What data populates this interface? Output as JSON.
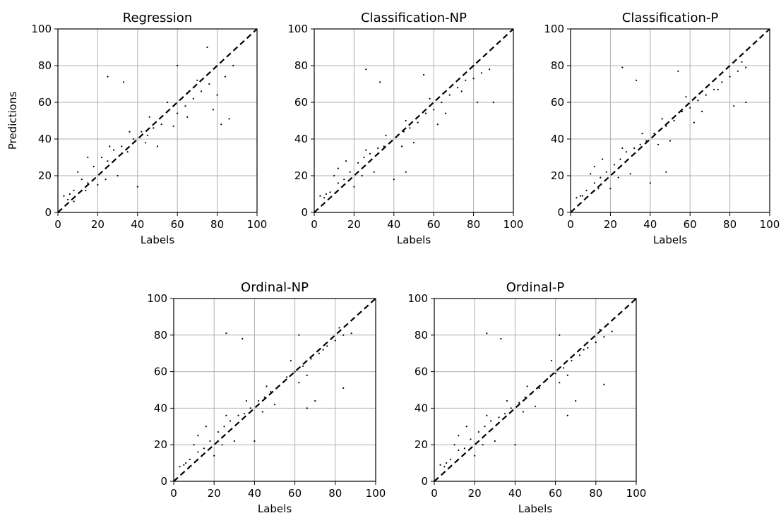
{
  "figure": {
    "ylabel": "Predictions"
  },
  "style": {
    "point_color": "#000000",
    "grid_color": "#b0b0b0",
    "reference_line_color": "#000000"
  },
  "chart_data": [
    {
      "type": "scatter",
      "title": "Regression",
      "xlabel": "Labels",
      "ylabel": "Predictions",
      "xlim": [
        0,
        100
      ],
      "ylim": [
        0,
        100
      ],
      "xticks": [
        "0",
        "20",
        "40",
        "60",
        "80",
        "100"
      ],
      "yticks": [
        "0",
        "20",
        "40",
        "60",
        "80",
        "100"
      ],
      "grid": true,
      "reference_line": {
        "type": "dashed",
        "points": [
          [
            0,
            0
          ],
          [
            100,
            100
          ]
        ]
      },
      "series": [
        {
          "points": [
            [
              3,
              9
            ],
            [
              5,
              7
            ],
            [
              8,
              12
            ],
            [
              12,
              18
            ],
            [
              15,
              16
            ],
            [
              18,
              25
            ],
            [
              22,
              30
            ],
            [
              25,
              28
            ],
            [
              28,
              34
            ],
            [
              32,
              36
            ],
            [
              35,
              33
            ],
            [
              38,
              40
            ],
            [
              42,
              44
            ],
            [
              45,
              42
            ],
            [
              48,
              46
            ],
            [
              52,
              48
            ],
            [
              56,
              56
            ],
            [
              60,
              54
            ],
            [
              64,
              58
            ],
            [
              68,
              62
            ],
            [
              72,
              66
            ],
            [
              76,
              70
            ],
            [
              80,
              64
            ],
            [
              84,
              74
            ],
            [
              88,
              80
            ],
            [
              75,
              90
            ],
            [
              25,
              74
            ],
            [
              33,
              71
            ],
            [
              60,
              80
            ],
            [
              86,
              51
            ],
            [
              82,
              48
            ],
            [
              40,
              14
            ],
            [
              8,
              6
            ],
            [
              10,
              22
            ],
            [
              20,
              15
            ],
            [
              30,
              20
            ],
            [
              15,
              30
            ],
            [
              50,
              36
            ],
            [
              55,
              60
            ],
            [
              65,
              52
            ],
            [
              6,
              10
            ],
            [
              14,
              12
            ],
            [
              26,
              36
            ],
            [
              36,
              44
            ],
            [
              46,
              52
            ],
            [
              58,
              47
            ],
            [
              70,
              72
            ],
            [
              78,
              56
            ],
            [
              24,
              18
            ],
            [
              44,
              38
            ]
          ]
        }
      ]
    },
    {
      "type": "scatter",
      "title": "Classification-NP",
      "xlabel": "Labels",
      "ylabel": "",
      "xlim": [
        0,
        100
      ],
      "ylim": [
        0,
        100
      ],
      "xticks": [
        "0",
        "20",
        "40",
        "60",
        "80",
        "100"
      ],
      "yticks": [
        "0",
        "20",
        "40",
        "60",
        "80",
        "100"
      ],
      "grid": true,
      "reference_line": {
        "type": "dashed",
        "points": [
          [
            0,
            0
          ],
          [
            100,
            100
          ]
        ]
      },
      "series": [
        {
          "points": [
            [
              3,
              9
            ],
            [
              5,
              8
            ],
            [
              8,
              11
            ],
            [
              12,
              16
            ],
            [
              15,
              18
            ],
            [
              18,
              22
            ],
            [
              22,
              27
            ],
            [
              25,
              30
            ],
            [
              28,
              32
            ],
            [
              32,
              35
            ],
            [
              35,
              36
            ],
            [
              38,
              38
            ],
            [
              42,
              42
            ],
            [
              45,
              44
            ],
            [
              48,
              46
            ],
            [
              52,
              49
            ],
            [
              56,
              54
            ],
            [
              60,
              56
            ],
            [
              64,
              60
            ],
            [
              68,
              64
            ],
            [
              72,
              68
            ],
            [
              76,
              72
            ],
            [
              80,
              73
            ],
            [
              84,
              76
            ],
            [
              88,
              78
            ],
            [
              26,
              78
            ],
            [
              33,
              71
            ],
            [
              55,
              75
            ],
            [
              90,
              60
            ],
            [
              82,
              60
            ],
            [
              46,
              22
            ],
            [
              40,
              18
            ],
            [
              10,
              20
            ],
            [
              20,
              14
            ],
            [
              30,
              22
            ],
            [
              16,
              28
            ],
            [
              50,
              38
            ],
            [
              58,
              62
            ],
            [
              66,
              54
            ],
            [
              6,
              10
            ],
            [
              14,
              14
            ],
            [
              26,
              34
            ],
            [
              36,
              42
            ],
            [
              46,
              50
            ],
            [
              62,
              48
            ],
            [
              74,
              66
            ],
            [
              80,
              80
            ],
            [
              24,
              20
            ],
            [
              44,
              36
            ],
            [
              12,
              24
            ]
          ]
        }
      ]
    },
    {
      "type": "scatter",
      "title": "Classification-P",
      "xlabel": "Labels",
      "ylabel": "",
      "xlim": [
        0,
        100
      ],
      "ylim": [
        0,
        100
      ],
      "xticks": [
        "0",
        "20",
        "40",
        "60",
        "80",
        "100"
      ],
      "yticks": [
        "0",
        "20",
        "40",
        "60",
        "80",
        "100"
      ],
      "grid": true,
      "reference_line": {
        "type": "dashed",
        "points": [
          [
            0,
            0
          ],
          [
            100,
            100
          ]
        ]
      },
      "series": [
        {
          "points": [
            [
              3,
              8
            ],
            [
              5,
              9
            ],
            [
              8,
              12
            ],
            [
              12,
              16
            ],
            [
              15,
              19
            ],
            [
              18,
              22
            ],
            [
              22,
              26
            ],
            [
              25,
              29
            ],
            [
              28,
              33
            ],
            [
              32,
              35
            ],
            [
              35,
              37
            ],
            [
              38,
              39
            ],
            [
              42,
              43
            ],
            [
              45,
              45
            ],
            [
              48,
              47
            ],
            [
              52,
              50
            ],
            [
              56,
              55
            ],
            [
              60,
              57
            ],
            [
              64,
              61
            ],
            [
              68,
              64
            ],
            [
              72,
              67
            ],
            [
              76,
              71
            ],
            [
              80,
              74
            ],
            [
              84,
              77
            ],
            [
              88,
              79
            ],
            [
              26,
              79
            ],
            [
              33,
              72
            ],
            [
              54,
              77
            ],
            [
              88,
              60
            ],
            [
              82,
              58
            ],
            [
              48,
              22
            ],
            [
              40,
              16
            ],
            [
              10,
              21
            ],
            [
              20,
              13
            ],
            [
              30,
              21
            ],
            [
              16,
              29
            ],
            [
              50,
              39
            ],
            [
              58,
              63
            ],
            [
              66,
              55
            ],
            [
              6,
              9
            ],
            [
              14,
              13
            ],
            [
              26,
              35
            ],
            [
              36,
              43
            ],
            [
              46,
              51
            ],
            [
              62,
              49
            ],
            [
              74,
              67
            ],
            [
              86,
              82
            ],
            [
              24,
              19
            ],
            [
              44,
              37
            ],
            [
              12,
              25
            ]
          ]
        }
      ]
    },
    {
      "type": "scatter",
      "title": "Ordinal-NP",
      "xlabel": "Labels",
      "ylabel": "",
      "xlim": [
        0,
        100
      ],
      "ylim": [
        0,
        100
      ],
      "xticks": [
        "0",
        "20",
        "40",
        "60",
        "80",
        "100"
      ],
      "yticks": [
        "0",
        "20",
        "40",
        "60",
        "80",
        "100"
      ],
      "grid": true,
      "reference_line": {
        "type": "dashed",
        "points": [
          [
            0,
            0
          ],
          [
            100,
            100
          ]
        ]
      },
      "series": [
        {
          "points": [
            [
              3,
              8
            ],
            [
              5,
              9
            ],
            [
              8,
              12
            ],
            [
              12,
              16
            ],
            [
              15,
              18
            ],
            [
              18,
              22
            ],
            [
              22,
              27
            ],
            [
              25,
              30
            ],
            [
              28,
              33
            ],
            [
              32,
              36
            ],
            [
              35,
              37
            ],
            [
              38,
              40
            ],
            [
              42,
              44
            ],
            [
              45,
              46
            ],
            [
              48,
              49
            ],
            [
              52,
              52
            ],
            [
              56,
              57
            ],
            [
              60,
              60
            ],
            [
              64,
              63
            ],
            [
              68,
              67
            ],
            [
              72,
              70
            ],
            [
              76,
              74
            ],
            [
              80,
              77
            ],
            [
              84,
              80
            ],
            [
              88,
              81
            ],
            [
              26,
              81
            ],
            [
              34,
              78
            ],
            [
              62,
              80
            ],
            [
              84,
              51
            ],
            [
              70,
              44
            ],
            [
              66,
              40
            ],
            [
              40,
              22
            ],
            [
              10,
              20
            ],
            [
              20,
              14
            ],
            [
              30,
              22
            ],
            [
              16,
              30
            ],
            [
              50,
              42
            ],
            [
              58,
              66
            ],
            [
              66,
              58
            ],
            [
              6,
              10
            ],
            [
              14,
              14
            ],
            [
              26,
              36
            ],
            [
              36,
              44
            ],
            [
              46,
              52
            ],
            [
              62,
              54
            ],
            [
              74,
              72
            ],
            [
              82,
              84
            ],
            [
              24,
              20
            ],
            [
              44,
              38
            ],
            [
              12,
              25
            ]
          ]
        }
      ]
    },
    {
      "type": "scatter",
      "title": "Ordinal-P",
      "xlabel": "Labels",
      "ylabel": "",
      "xlim": [
        0,
        100
      ],
      "ylim": [
        0,
        100
      ],
      "xticks": [
        "0",
        "20",
        "40",
        "60",
        "80",
        "100"
      ],
      "yticks": [
        "0",
        "20",
        "40",
        "60",
        "80",
        "100"
      ],
      "grid": true,
      "reference_line": {
        "type": "dashed",
        "points": [
          [
            0,
            0
          ],
          [
            100,
            100
          ]
        ]
      },
      "series": [
        {
          "points": [
            [
              3,
              9
            ],
            [
              5,
              8
            ],
            [
              8,
              12
            ],
            [
              12,
              17
            ],
            [
              15,
              18
            ],
            [
              18,
              23
            ],
            [
              22,
              27
            ],
            [
              25,
              30
            ],
            [
              28,
              33
            ],
            [
              32,
              35
            ],
            [
              35,
              37
            ],
            [
              38,
              40
            ],
            [
              42,
              43
            ],
            [
              45,
              46
            ],
            [
              48,
              48
            ],
            [
              52,
              51
            ],
            [
              56,
              56
            ],
            [
              60,
              59
            ],
            [
              64,
              62
            ],
            [
              68,
              66
            ],
            [
              72,
              69
            ],
            [
              76,
              73
            ],
            [
              80,
              76
            ],
            [
              84,
              79
            ],
            [
              88,
              82
            ],
            [
              26,
              81
            ],
            [
              33,
              78
            ],
            [
              62,
              80
            ],
            [
              84,
              53
            ],
            [
              70,
              44
            ],
            [
              66,
              36
            ],
            [
              40,
              20
            ],
            [
              10,
              20
            ],
            [
              20,
              14
            ],
            [
              30,
              22
            ],
            [
              16,
              30
            ],
            [
              50,
              41
            ],
            [
              58,
              66
            ],
            [
              66,
              58
            ],
            [
              6,
              10
            ],
            [
              14,
              14
            ],
            [
              26,
              36
            ],
            [
              36,
              44
            ],
            [
              46,
              52
            ],
            [
              62,
              54
            ],
            [
              74,
              72
            ],
            [
              82,
              83
            ],
            [
              24,
              20
            ],
            [
              44,
              38
            ],
            [
              12,
              25
            ]
          ]
        }
      ]
    }
  ]
}
